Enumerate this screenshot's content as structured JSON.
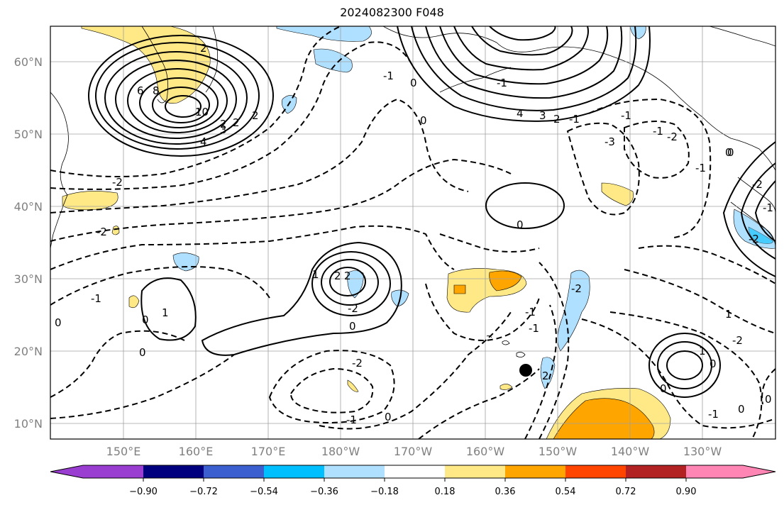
{
  "title": "2024082300 F048",
  "map": {
    "lon_labels": [
      "150°E",
      "160°E",
      "170°E",
      "180°W",
      "170°W",
      "160°W",
      "150°W",
      "140°W",
      "130°W"
    ],
    "lat_labels": [
      "60°N",
      "50°N",
      "40°N",
      "30°N",
      "20°N",
      "10°N"
    ],
    "contour_labels": [
      "2",
      "6",
      "8",
      "10",
      "4",
      "3",
      "2",
      "2",
      "-2",
      "-2",
      "-1",
      "0",
      "4",
      "3",
      "2",
      "-1",
      "0",
      "-1",
      "-1",
      "-2",
      "-1",
      "0",
      "-2",
      "-1",
      "-2",
      "-3",
      "0",
      "1",
      "1",
      "2",
      "2",
      "-2",
      "0",
      "0",
      "-2",
      "0",
      "0",
      "-1",
      "0",
      "0",
      "1",
      "-2",
      "1",
      "-1",
      "0",
      "-1",
      "-2",
      "0",
      "-1",
      "0",
      "-1",
      "2",
      "-1",
      "0",
      "2"
    ],
    "marker": "black-dot"
  },
  "colorbar": {
    "tick_labels": [
      "−0.90",
      "−0.72",
      "−0.54",
      "−0.36",
      "−0.18",
      "0.18",
      "0.36",
      "0.54",
      "0.72",
      "0.90"
    ],
    "colors": [
      "#9a3ed1",
      "#00007f",
      "#3b5fcf",
      "#00bfff",
      "#b0e0ff",
      "#ffffff",
      "#ffe987",
      "#ffa500",
      "#ff4500",
      "#b22222",
      "#ff85b4"
    ]
  }
}
